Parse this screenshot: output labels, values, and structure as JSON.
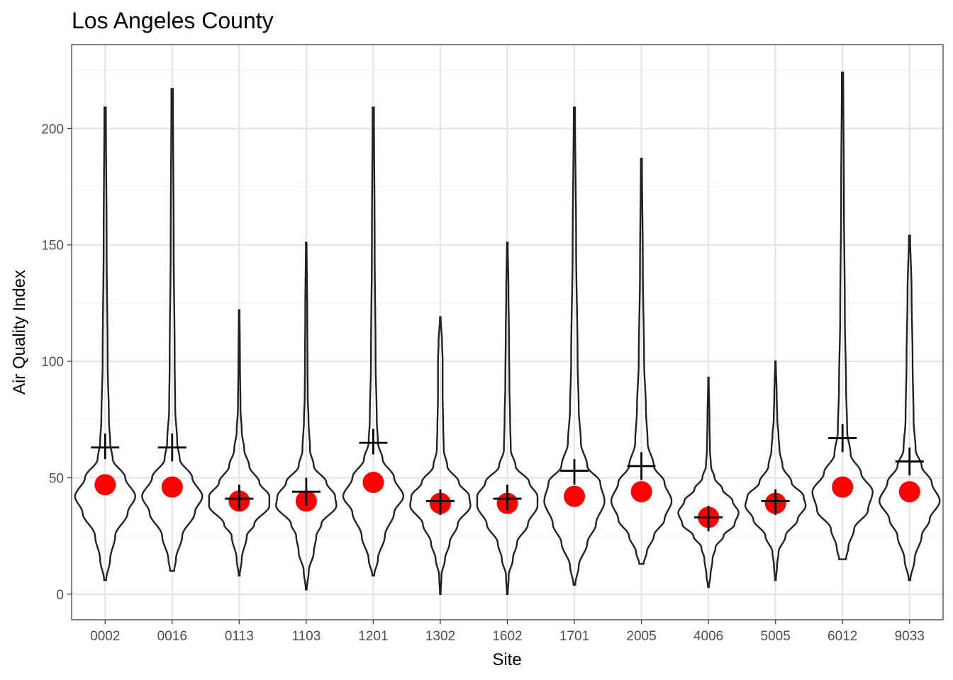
{
  "chart_data": {
    "type": "violin",
    "title": "Los Angeles County",
    "xlabel": "Site",
    "ylabel": "Air Quality Index",
    "ylim": [
      -11,
      236
    ],
    "yticks": [
      0,
      50,
      100,
      150,
      200
    ],
    "ytick_labels": [
      "0",
      "50",
      "100",
      "150",
      "200"
    ],
    "grid": true,
    "colors": {
      "mean_point": "#ff0000",
      "violin_outline": "#222222",
      "summary_cross": "#000000"
    },
    "categories": [
      "0002",
      "0016",
      "0113",
      "1103",
      "1201",
      "1302",
      "1602",
      "1701",
      "2005",
      "4006",
      "5005",
      "6012",
      "9033"
    ],
    "series": [
      {
        "site": "0002",
        "min": 6,
        "max": 209,
        "mean": 47,
        "cross_center": 63,
        "cross_low": 58,
        "cross_high": 69,
        "profile": [
          [
            6,
            0.4
          ],
          [
            15,
            2
          ],
          [
            25,
            4
          ],
          [
            35,
            9
          ],
          [
            42,
            12
          ],
          [
            50,
            8
          ],
          [
            58,
            3
          ],
          [
            65,
            2
          ],
          [
            75,
            1.5
          ],
          [
            100,
            1
          ],
          [
            150,
            0.6
          ],
          [
            209,
            0.3
          ]
        ]
      },
      {
        "site": "0016",
        "min": 10,
        "max": 217,
        "mean": 46,
        "cross_center": 63,
        "cross_low": 57,
        "cross_high": 69,
        "profile": [
          [
            10,
            0.8
          ],
          [
            15,
            1.5
          ],
          [
            25,
            4
          ],
          [
            35,
            9
          ],
          [
            42,
            12
          ],
          [
            50,
            8
          ],
          [
            58,
            3
          ],
          [
            65,
            2
          ],
          [
            80,
            1.2
          ],
          [
            100,
            1
          ],
          [
            150,
            0.6
          ],
          [
            217,
            0.3
          ]
        ]
      },
      {
        "site": "0113",
        "min": 8,
        "max": 122,
        "mean": 40,
        "cross_center": 41,
        "cross_low": 36,
        "cross_high": 47,
        "profile": [
          [
            8,
            0.4
          ],
          [
            15,
            2
          ],
          [
            25,
            6
          ],
          [
            30,
            12
          ],
          [
            38,
            24
          ],
          [
            42,
            24
          ],
          [
            48,
            16
          ],
          [
            55,
            8
          ],
          [
            62,
            4
          ],
          [
            70,
            2
          ],
          [
            80,
            1
          ],
          [
            100,
            0.6
          ],
          [
            122,
            0.3
          ]
        ]
      },
      {
        "site": "1103",
        "min": 2,
        "max": 151,
        "mean": 40,
        "cross_center": 44,
        "cross_low": 38,
        "cross_high": 50,
        "profile": [
          [
            2,
            0.4
          ],
          [
            10,
            2
          ],
          [
            18,
            6
          ],
          [
            25,
            8
          ],
          [
            30,
            12
          ],
          [
            38,
            24
          ],
          [
            42,
            23
          ],
          [
            48,
            16
          ],
          [
            55,
            6
          ],
          [
            62,
            3
          ],
          [
            75,
            1.8
          ],
          [
            85,
            1.2
          ],
          [
            100,
            1
          ],
          [
            120,
            0.8
          ],
          [
            151,
            0.3
          ]
        ]
      },
      {
        "site": "1201",
        "min": 8,
        "max": 209,
        "mean": 48,
        "cross_center": 65,
        "cross_low": 60,
        "cross_high": 71,
        "profile": [
          [
            8,
            0.4
          ],
          [
            15,
            2
          ],
          [
            25,
            5
          ],
          [
            35,
            9
          ],
          [
            42,
            13
          ],
          [
            50,
            9
          ],
          [
            58,
            4
          ],
          [
            65,
            2
          ],
          [
            75,
            1.5
          ],
          [
            100,
            1
          ],
          [
            150,
            0.6
          ],
          [
            209,
            0.3
          ]
        ]
      },
      {
        "site": "1302",
        "min": 0,
        "max": 119,
        "mean": 39,
        "cross_center": 40,
        "cross_low": 34,
        "cross_high": 45,
        "profile": [
          [
            0,
            0.3
          ],
          [
            8,
            1
          ],
          [
            15,
            4
          ],
          [
            22,
            8
          ],
          [
            30,
            15
          ],
          [
            38,
            26
          ],
          [
            42,
            25
          ],
          [
            48,
            16
          ],
          [
            55,
            6
          ],
          [
            62,
            3
          ],
          [
            72,
            2.5
          ],
          [
            85,
            2
          ],
          [
            100,
            2
          ],
          [
            108,
            1.5
          ],
          [
            119,
            0.3
          ]
        ]
      },
      {
        "site": "1602",
        "min": 0,
        "max": 151,
        "mean": 39,
        "cross_center": 41,
        "cross_low": 36,
        "cross_high": 47,
        "profile": [
          [
            0,
            0.3
          ],
          [
            8,
            1
          ],
          [
            15,
            4
          ],
          [
            22,
            7
          ],
          [
            30,
            15
          ],
          [
            38,
            22
          ],
          [
            42,
            22
          ],
          [
            48,
            16
          ],
          [
            55,
            6
          ],
          [
            62,
            2.5
          ],
          [
            75,
            2
          ],
          [
            90,
            1.5
          ],
          [
            110,
            1.2
          ],
          [
            130,
            0.8
          ],
          [
            151,
            0.3
          ]
        ]
      },
      {
        "site": "1701",
        "min": 4,
        "max": 209,
        "mean": 42,
        "cross_center": 53,
        "cross_low": 47,
        "cross_high": 58,
        "profile": [
          [
            4,
            0.4
          ],
          [
            12,
            2
          ],
          [
            22,
            6
          ],
          [
            30,
            10
          ],
          [
            40,
            14
          ],
          [
            48,
            12
          ],
          [
            55,
            6
          ],
          [
            65,
            3
          ],
          [
            80,
            2
          ],
          [
            100,
            1.5
          ],
          [
            150,
            0.8
          ],
          [
            209,
            0.3
          ]
        ]
      },
      {
        "site": "2005",
        "min": 13,
        "max": 187,
        "mean": 44,
        "cross_center": 55,
        "cross_low": 49,
        "cross_high": 61,
        "profile": [
          [
            13,
            1.2
          ],
          [
            18,
            3
          ],
          [
            25,
            7
          ],
          [
            32,
            13
          ],
          [
            40,
            17
          ],
          [
            48,
            13
          ],
          [
            55,
            7
          ],
          [
            65,
            3.5
          ],
          [
            80,
            2.5
          ],
          [
            100,
            1.5
          ],
          [
            140,
            0.8
          ],
          [
            187,
            0.3
          ]
        ]
      },
      {
        "site": "4006",
        "min": 3,
        "max": 93,
        "mean": 33,
        "cross_center": 33,
        "cross_low": 27,
        "cross_high": 38,
        "profile": [
          [
            3,
            0.4
          ],
          [
            8,
            2
          ],
          [
            15,
            4
          ],
          [
            20,
            7
          ],
          [
            25,
            15
          ],
          [
            30,
            26
          ],
          [
            35,
            30
          ],
          [
            40,
            24
          ],
          [
            45,
            14
          ],
          [
            50,
            6
          ],
          [
            55,
            2.5
          ],
          [
            62,
            1.5
          ],
          [
            75,
            1
          ],
          [
            93,
            0.3
          ]
        ]
      },
      {
        "site": "5005",
        "min": 6,
        "max": 100,
        "mean": 39,
        "cross_center": 40,
        "cross_low": 34,
        "cross_high": 45,
        "profile": [
          [
            6,
            0.4
          ],
          [
            12,
            1.5
          ],
          [
            18,
            3
          ],
          [
            25,
            10
          ],
          [
            32,
            22
          ],
          [
            38,
            30
          ],
          [
            42,
            28
          ],
          [
            48,
            16
          ],
          [
            55,
            7
          ],
          [
            62,
            4
          ],
          [
            68,
            3
          ],
          [
            75,
            1.8
          ],
          [
            85,
            1.2
          ],
          [
            100,
            0.3
          ]
        ]
      },
      {
        "site": "6012",
        "min": 15,
        "max": 224,
        "mean": 46,
        "cross_center": 67,
        "cross_low": 61,
        "cross_high": 73,
        "profile": [
          [
            15,
            1.5
          ],
          [
            20,
            2.5
          ],
          [
            28,
            5
          ],
          [
            36,
            11
          ],
          [
            44,
            13
          ],
          [
            52,
            8
          ],
          [
            60,
            3.5
          ],
          [
            70,
            2
          ],
          [
            90,
            1.5
          ],
          [
            120,
            1
          ],
          [
            170,
            0.6
          ],
          [
            224,
            0.3
          ]
        ]
      },
      {
        "site": "9033",
        "min": 6,
        "max": 154,
        "mean": 44,
        "cross_center": 57,
        "cross_low": 51,
        "cross_high": 63,
        "profile": [
          [
            6,
            0.4
          ],
          [
            15,
            2.5
          ],
          [
            25,
            6
          ],
          [
            32,
            10
          ],
          [
            40,
            15
          ],
          [
            48,
            11
          ],
          [
            55,
            6
          ],
          [
            62,
            3
          ],
          [
            75,
            2
          ],
          [
            100,
            1.5
          ],
          [
            130,
            1
          ],
          [
            154,
            0.3
          ]
        ]
      }
    ]
  }
}
